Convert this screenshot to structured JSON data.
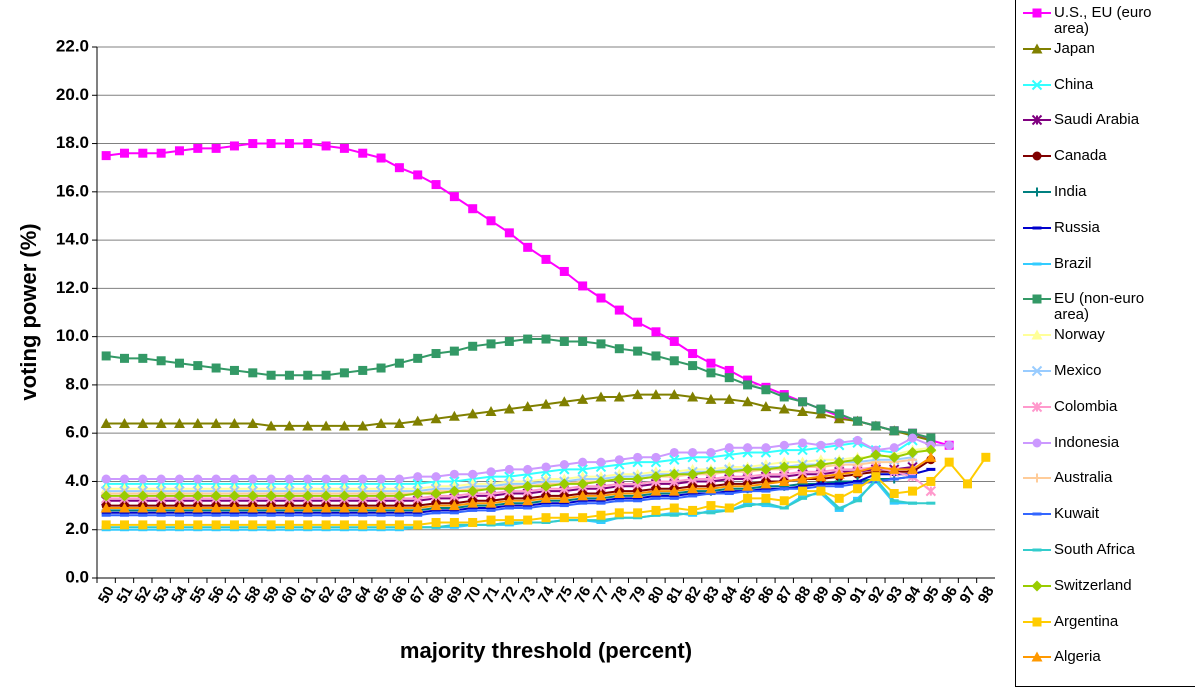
{
  "chart_data": {
    "type": "line",
    "xlabel": "majority threshold (percent)",
    "ylabel": "voting power (%)",
    "categories": [
      50,
      51,
      52,
      53,
      54,
      55,
      56,
      57,
      58,
      59,
      60,
      61,
      62,
      63,
      64,
      65,
      66,
      67,
      68,
      69,
      70,
      71,
      72,
      73,
      74,
      75,
      76,
      77,
      78,
      79,
      80,
      81,
      82,
      83,
      84,
      85,
      86,
      87,
      88,
      89,
      90,
      91,
      92,
      93,
      94,
      95,
      96,
      97,
      98
    ],
    "ylim": [
      0,
      22
    ],
    "yticks": [
      {
        "value": 0,
        "label": "0.0"
      },
      {
        "value": 2,
        "label": "2.0"
      },
      {
        "value": 4,
        "label": "4.0"
      },
      {
        "value": 6,
        "label": "6.0"
      },
      {
        "value": 8,
        "label": "8.0"
      },
      {
        "value": 10,
        "label": "10.0"
      },
      {
        "value": 12,
        "label": "12.0"
      },
      {
        "value": 14,
        "label": "14.0"
      },
      {
        "value": 16,
        "label": "16.0"
      },
      {
        "value": 18,
        "label": "18.0"
      },
      {
        "value": 20,
        "label": "20.0"
      },
      {
        "value": 22,
        "label": "22.0"
      }
    ],
    "grid": true,
    "series": [
      {
        "name": "U.S., EU (euro area)",
        "color": "#ff00ff",
        "marker": "square",
        "values": [
          17.5,
          17.6,
          17.6,
          17.6,
          17.7,
          17.8,
          17.8,
          17.9,
          18.0,
          18.0,
          18.0,
          18.0,
          17.9,
          17.8,
          17.6,
          17.4,
          17.0,
          16.7,
          16.3,
          15.8,
          15.3,
          14.8,
          14.3,
          13.7,
          13.2,
          12.7,
          12.1,
          11.6,
          11.1,
          10.6,
          10.2,
          9.8,
          9.3,
          8.9,
          8.6,
          8.2,
          7.9,
          7.6,
          7.3,
          7.0,
          6.7,
          6.5,
          6.3,
          6.1,
          6.0,
          5.7,
          5.5,
          null,
          null
        ]
      },
      {
        "name": "Japan",
        "color": "#808000",
        "marker": "triangle",
        "values": [
          6.4,
          6.4,
          6.4,
          6.4,
          6.4,
          6.4,
          6.4,
          6.4,
          6.4,
          6.3,
          6.3,
          6.3,
          6.3,
          6.3,
          6.3,
          6.4,
          6.4,
          6.5,
          6.6,
          6.7,
          6.8,
          6.9,
          7.0,
          7.1,
          7.2,
          7.3,
          7.4,
          7.5,
          7.5,
          7.6,
          7.6,
          7.6,
          7.5,
          7.4,
          7.4,
          7.3,
          7.1,
          7.0,
          6.9,
          6.8,
          6.6,
          6.5,
          6.3,
          6.1,
          5.9,
          5.7,
          null,
          null,
          null
        ]
      },
      {
        "name": "China",
        "color": "#33ffff",
        "marker": "x",
        "values": [
          3.9,
          3.9,
          3.9,
          3.9,
          3.9,
          3.9,
          3.9,
          3.9,
          3.9,
          3.9,
          3.9,
          3.9,
          3.9,
          3.9,
          3.9,
          3.9,
          3.9,
          3.9,
          4.0,
          4.0,
          4.1,
          4.2,
          4.2,
          4.3,
          4.4,
          4.5,
          4.5,
          4.6,
          4.7,
          4.8,
          4.8,
          4.9,
          5.0,
          5.0,
          5.1,
          5.2,
          5.2,
          5.3,
          5.3,
          5.4,
          5.5,
          5.6,
          5.3,
          5.2,
          5.7,
          null,
          null,
          null,
          null
        ]
      },
      {
        "name": "Saudi Arabia",
        "color": "#800080",
        "marker": "star",
        "values": [
          3.2,
          3.2,
          3.2,
          3.2,
          3.2,
          3.2,
          3.2,
          3.2,
          3.2,
          3.2,
          3.2,
          3.2,
          3.2,
          3.2,
          3.2,
          3.2,
          3.2,
          3.2,
          3.3,
          3.3,
          3.4,
          3.4,
          3.5,
          3.5,
          3.6,
          3.6,
          3.7,
          3.7,
          3.8,
          3.8,
          3.9,
          3.9,
          4.0,
          4.0,
          4.1,
          4.1,
          4.2,
          4.2,
          4.3,
          4.3,
          4.4,
          4.4,
          4.5,
          4.5,
          4.6,
          null,
          null,
          null,
          null
        ]
      },
      {
        "name": "Canada",
        "color": "#800000",
        "marker": "circle",
        "values": [
          3.0,
          3.0,
          3.0,
          3.0,
          3.0,
          3.0,
          3.0,
          3.0,
          3.0,
          3.0,
          3.0,
          3.0,
          3.0,
          3.0,
          3.0,
          3.0,
          3.0,
          3.0,
          3.1,
          3.1,
          3.2,
          3.2,
          3.3,
          3.3,
          3.4,
          3.4,
          3.5,
          3.5,
          3.6,
          3.6,
          3.7,
          3.7,
          3.8,
          3.8,
          3.9,
          3.9,
          4.0,
          4.0,
          4.1,
          4.1,
          4.2,
          4.3,
          4.4,
          4.4,
          4.4,
          4.9,
          null,
          null,
          null
        ]
      },
      {
        "name": "India",
        "color": "#008080",
        "marker": "plus",
        "values": [
          2.8,
          2.8,
          2.8,
          2.8,
          2.8,
          2.8,
          2.8,
          2.8,
          2.8,
          2.8,
          2.8,
          2.8,
          2.8,
          2.8,
          2.8,
          2.8,
          2.8,
          2.8,
          2.9,
          2.9,
          3.0,
          3.0,
          3.1,
          3.1,
          3.2,
          3.2,
          3.3,
          3.3,
          3.4,
          3.4,
          3.5,
          3.5,
          3.6,
          3.6,
          3.7,
          3.7,
          3.8,
          3.8,
          3.9,
          3.9,
          4.0,
          4.0,
          4.1,
          4.1,
          4.2,
          null,
          null,
          null,
          null
        ]
      },
      {
        "name": "Russia",
        "color": "#0000cc",
        "marker": "dash",
        "values": [
          2.7,
          2.7,
          2.7,
          2.7,
          2.7,
          2.7,
          2.7,
          2.7,
          2.7,
          2.7,
          2.7,
          2.7,
          2.7,
          2.7,
          2.7,
          2.7,
          2.7,
          2.7,
          2.8,
          2.8,
          2.9,
          2.9,
          3.0,
          3.0,
          3.1,
          3.1,
          3.2,
          3.2,
          3.3,
          3.3,
          3.4,
          3.4,
          3.5,
          3.5,
          3.6,
          3.6,
          3.7,
          3.7,
          3.8,
          3.9,
          3.9,
          4.0,
          4.3,
          4.3,
          4.3,
          4.5,
          null,
          null,
          null
        ]
      },
      {
        "name": "Brazil",
        "color": "#33ccff",
        "marker": "dash",
        "values": [
          2.0,
          2.0,
          2.0,
          2.0,
          2.0,
          2.0,
          2.0,
          2.0,
          2.0,
          2.0,
          2.0,
          2.0,
          2.0,
          2.0,
          2.0,
          2.0,
          2.0,
          2.1,
          2.1,
          2.1,
          2.2,
          2.2,
          2.2,
          2.3,
          2.3,
          2.4,
          2.4,
          2.3,
          2.5,
          2.5,
          2.6,
          2.7,
          2.6,
          2.8,
          2.8,
          3.1,
          3.0,
          2.9,
          3.4,
          3.5,
          2.8,
          3.3,
          4.0,
          3.1,
          3.1,
          null,
          null,
          null,
          null
        ]
      },
      {
        "name": "EU (non-euro area)",
        "color": "#339966",
        "marker": "square",
        "values": [
          9.2,
          9.1,
          9.1,
          9.0,
          8.9,
          8.8,
          8.7,
          8.6,
          8.5,
          8.4,
          8.4,
          8.4,
          8.4,
          8.5,
          8.6,
          8.7,
          8.9,
          9.1,
          9.3,
          9.4,
          9.6,
          9.7,
          9.8,
          9.9,
          9.9,
          9.8,
          9.8,
          9.7,
          9.5,
          9.4,
          9.2,
          9.0,
          8.8,
          8.5,
          8.3,
          8.0,
          7.8,
          7.5,
          7.3,
          7.0,
          6.8,
          6.5,
          6.3,
          6.1,
          6.0,
          5.8,
          null,
          null,
          null
        ]
      },
      {
        "name": "Norway",
        "color": "#ffff99",
        "marker": "triangle",
        "values": [
          3.7,
          3.7,
          3.7,
          3.7,
          3.7,
          3.7,
          3.7,
          3.7,
          3.7,
          3.7,
          3.7,
          3.7,
          3.7,
          3.7,
          3.7,
          3.7,
          3.7,
          3.7,
          3.8,
          3.8,
          3.9,
          3.9,
          4.0,
          4.0,
          4.1,
          4.1,
          4.2,
          4.2,
          4.3,
          4.3,
          4.4,
          4.4,
          4.5,
          4.5,
          4.6,
          4.6,
          4.7,
          4.8,
          4.8,
          4.9,
          4.9,
          5.0,
          5.0,
          5.1,
          5.3,
          5.4,
          null,
          null,
          null
        ]
      },
      {
        "name": "Mexico",
        "color": "#99ccff",
        "marker": "x",
        "values": [
          3.6,
          3.6,
          3.6,
          3.6,
          3.6,
          3.6,
          3.6,
          3.6,
          3.6,
          3.6,
          3.6,
          3.6,
          3.6,
          3.6,
          3.6,
          3.6,
          3.6,
          3.6,
          3.7,
          3.7,
          3.8,
          3.8,
          3.9,
          3.9,
          4.0,
          4.0,
          4.1,
          4.1,
          4.2,
          4.2,
          4.3,
          4.3,
          4.4,
          4.4,
          4.5,
          4.5,
          4.6,
          4.6,
          4.7,
          4.7,
          4.8,
          4.8,
          4.9,
          4.9,
          5.0,
          null,
          null,
          null,
          null
        ]
      },
      {
        "name": "Colombia",
        "color": "#ff99cc",
        "marker": "star",
        "values": [
          3.3,
          3.3,
          3.3,
          3.3,
          3.3,
          3.3,
          3.3,
          3.3,
          3.3,
          3.3,
          3.3,
          3.3,
          3.3,
          3.3,
          3.3,
          3.3,
          3.3,
          3.3,
          3.4,
          3.4,
          3.5,
          3.5,
          3.6,
          3.6,
          3.7,
          3.7,
          3.8,
          3.8,
          3.9,
          3.9,
          4.0,
          4.0,
          4.1,
          4.1,
          4.2,
          4.2,
          4.3,
          4.3,
          4.4,
          4.4,
          4.5,
          4.5,
          4.6,
          4.4,
          4.2,
          3.6,
          null,
          null,
          null
        ]
      },
      {
        "name": "Indonesia",
        "color": "#cc99ff",
        "marker": "circle",
        "values": [
          4.1,
          4.1,
          4.1,
          4.1,
          4.1,
          4.1,
          4.1,
          4.1,
          4.1,
          4.1,
          4.1,
          4.1,
          4.1,
          4.1,
          4.1,
          4.1,
          4.1,
          4.2,
          4.2,
          4.3,
          4.3,
          4.4,
          4.5,
          4.5,
          4.6,
          4.7,
          4.8,
          4.8,
          4.9,
          5.0,
          5.0,
          5.2,
          5.2,
          5.2,
          5.4,
          5.4,
          5.4,
          5.5,
          5.6,
          5.5,
          5.6,
          5.7,
          5.3,
          5.4,
          5.8,
          5.5,
          5.5,
          null,
          null
        ]
      },
      {
        "name": "Australia",
        "color": "#ffcc99",
        "marker": "plus",
        "values": [
          3.5,
          3.5,
          3.5,
          3.5,
          3.5,
          3.5,
          3.5,
          3.5,
          3.5,
          3.5,
          3.5,
          3.5,
          3.5,
          3.5,
          3.5,
          3.5,
          3.5,
          3.5,
          3.6,
          3.6,
          3.7,
          3.7,
          3.8,
          3.8,
          3.9,
          3.9,
          4.0,
          4.0,
          4.1,
          4.1,
          4.2,
          4.2,
          4.3,
          4.3,
          4.4,
          4.4,
          4.5,
          4.5,
          4.6,
          4.6,
          4.7,
          4.7,
          4.8,
          4.8,
          4.9,
          null,
          null,
          null,
          null
        ]
      },
      {
        "name": "Kuwait",
        "color": "#3366ff",
        "marker": "dash",
        "values": [
          2.6,
          2.6,
          2.6,
          2.6,
          2.6,
          2.6,
          2.6,
          2.6,
          2.6,
          2.6,
          2.6,
          2.6,
          2.6,
          2.6,
          2.6,
          2.6,
          2.6,
          2.6,
          2.7,
          2.7,
          2.8,
          2.8,
          2.9,
          2.9,
          3.0,
          3.0,
          3.1,
          3.1,
          3.2,
          3.2,
          3.3,
          3.3,
          3.4,
          3.5,
          3.5,
          3.6,
          3.6,
          3.7,
          3.7,
          3.8,
          3.8,
          3.9,
          4.0,
          4.1,
          4.2,
          null,
          null,
          null,
          null
        ]
      },
      {
        "name": "South Africa",
        "color": "#33cccc",
        "marker": "dash",
        "values": [
          2.1,
          2.1,
          2.1,
          2.1,
          2.1,
          2.1,
          2.1,
          2.1,
          2.1,
          2.1,
          2.1,
          2.1,
          2.1,
          2.1,
          2.1,
          2.1,
          2.1,
          2.1,
          2.1,
          2.2,
          2.2,
          2.2,
          2.3,
          2.3,
          2.3,
          2.4,
          2.4,
          2.4,
          2.5,
          2.5,
          2.6,
          2.6,
          2.7,
          2.7,
          2.8,
          3.0,
          3.1,
          2.9,
          3.3,
          3.6,
          2.9,
          3.2,
          4.1,
          3.2,
          3.1,
          3.1,
          null,
          null,
          null
        ]
      },
      {
        "name": "Switzerland",
        "color": "#99cc00",
        "marker": "diamond",
        "values": [
          3.4,
          3.4,
          3.4,
          3.4,
          3.4,
          3.4,
          3.4,
          3.4,
          3.4,
          3.4,
          3.4,
          3.4,
          3.4,
          3.4,
          3.4,
          3.4,
          3.4,
          3.5,
          3.5,
          3.6,
          3.6,
          3.7,
          3.7,
          3.8,
          3.8,
          3.9,
          3.9,
          4.0,
          4.1,
          4.1,
          4.2,
          4.3,
          4.3,
          4.4,
          4.4,
          4.5,
          4.5,
          4.6,
          4.6,
          4.7,
          4.8,
          4.9,
          5.1,
          5.0,
          5.2,
          5.3,
          null,
          null,
          null
        ]
      },
      {
        "name": "Argentina",
        "color": "#ffcc00",
        "marker": "square",
        "values": [
          2.2,
          2.2,
          2.2,
          2.2,
          2.2,
          2.2,
          2.2,
          2.2,
          2.2,
          2.2,
          2.2,
          2.2,
          2.2,
          2.2,
          2.2,
          2.2,
          2.2,
          2.2,
          2.3,
          2.3,
          2.3,
          2.4,
          2.4,
          2.4,
          2.5,
          2.5,
          2.5,
          2.6,
          2.7,
          2.7,
          2.8,
          2.9,
          2.8,
          3.0,
          2.9,
          3.3,
          3.3,
          3.2,
          3.6,
          3.6,
          3.3,
          3.7,
          4.2,
          3.5,
          3.6,
          4.0,
          4.8,
          3.9,
          5.0
        ]
      },
      {
        "name": "Algeria",
        "color": "#ff9900",
        "marker": "triangle",
        "values": [
          2.9,
          2.9,
          2.9,
          2.9,
          2.9,
          2.9,
          2.9,
          2.9,
          2.9,
          2.9,
          2.9,
          2.9,
          2.9,
          2.9,
          2.9,
          2.9,
          2.9,
          2.9,
          3.0,
          3.0,
          3.1,
          3.1,
          3.2,
          3.2,
          3.3,
          3.3,
          3.4,
          3.4,
          3.5,
          3.5,
          3.6,
          3.6,
          3.7,
          3.7,
          3.8,
          3.8,
          3.9,
          4.0,
          4.1,
          4.2,
          4.3,
          4.4,
          4.6,
          4.5,
          4.5,
          5.0,
          null,
          null,
          null
        ]
      }
    ]
  }
}
